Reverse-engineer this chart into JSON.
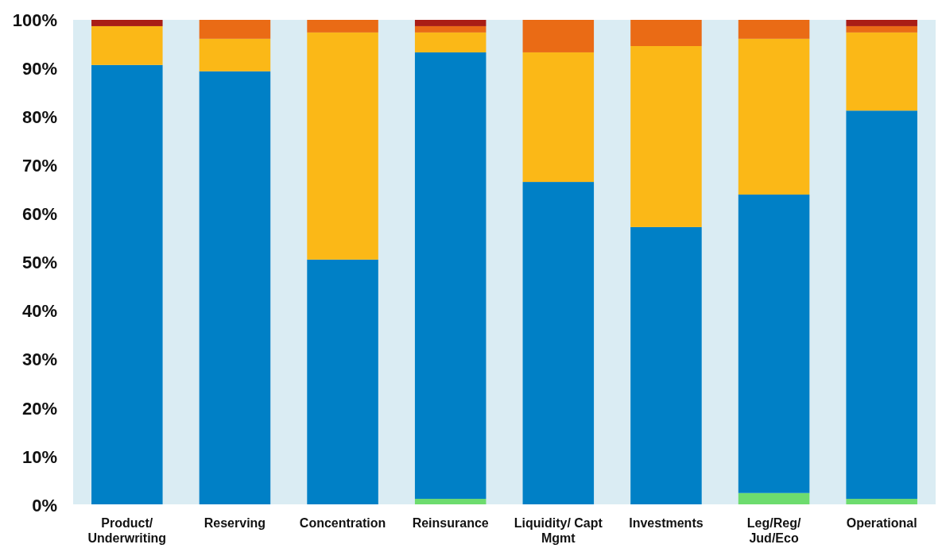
{
  "chart_data": {
    "type": "bar",
    "stacked": true,
    "categories": [
      "Product/ Underwriting",
      "Reserving",
      "Concentration",
      "Reinsurance",
      "Liquidity/ Capt Mgmt",
      "Investments",
      "Leg/Reg/ Jud/Eco",
      "Operational"
    ],
    "series": [
      {
        "color": "#6ddc6e",
        "values": [
          0,
          0,
          0,
          1.3,
          0,
          0,
          2.5,
          1.3
        ]
      },
      {
        "color": "#0080c6",
        "values": [
          90.7,
          89.4,
          50.6,
          92.0,
          66.6,
          57.3,
          61.5,
          80.0
        ]
      },
      {
        "color": "#fbb817",
        "values": [
          8.0,
          6.7,
          46.8,
          4.1,
          26.7,
          37.3,
          32.1,
          16.1
        ]
      },
      {
        "color": "#ea6b15",
        "values": [
          0,
          3.9,
          2.6,
          1.3,
          6.7,
          5.4,
          3.9,
          1.3
        ]
      },
      {
        "color": "#a91d16",
        "values": [
          1.3,
          0,
          0,
          1.3,
          0,
          0,
          0,
          1.3
        ]
      }
    ],
    "ylim": [
      0,
      100
    ],
    "yticks": [
      {
        "value": 0,
        "label": "0%"
      },
      {
        "value": 10,
        "label": "10%"
      },
      {
        "value": 20,
        "label": "20%"
      },
      {
        "value": 30,
        "label": "30%"
      },
      {
        "value": 40,
        "label": "40%"
      },
      {
        "value": 50,
        "label": "50%"
      },
      {
        "value": 60,
        "label": "60%"
      },
      {
        "value": 70,
        "label": "70%"
      },
      {
        "value": 80,
        "label": "80%"
      },
      {
        "value": 90,
        "label": "90%"
      },
      {
        "value": 100,
        "label": "100%"
      }
    ],
    "grid": false
  }
}
